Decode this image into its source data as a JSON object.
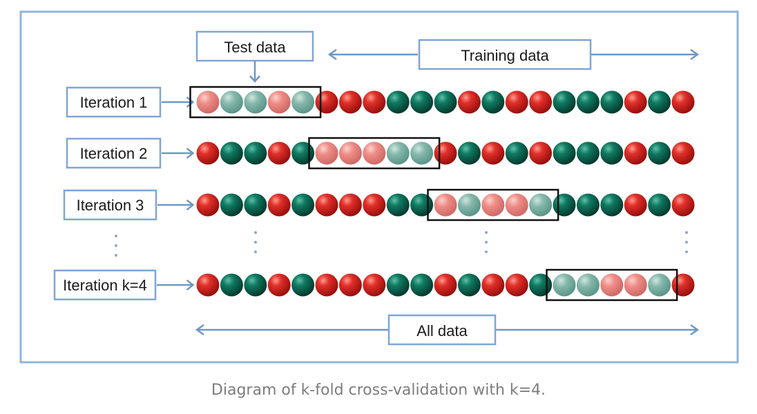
{
  "labels": {
    "test_data": "Test data",
    "training_data": "Training data",
    "all_data": "All data"
  },
  "rows": [
    {
      "label": "Iteration 1",
      "balls": [
        "R",
        "G",
        "G",
        "R",
        "G",
        "R",
        "R",
        "R",
        "G",
        "G",
        "G",
        "R",
        "G",
        "R",
        "R",
        "G",
        "G",
        "G",
        "R",
        "G",
        "R"
      ],
      "test_start": 0
    },
    {
      "label": "Iteration 2",
      "balls": [
        "R",
        "G",
        "G",
        "R",
        "G",
        "R",
        "R",
        "R",
        "G",
        "G",
        "R",
        "G",
        "R",
        "G",
        "R",
        "G",
        "G",
        "G",
        "R",
        "G",
        "R"
      ],
      "test_start": 5
    },
    {
      "label": "Iteration 3",
      "balls": [
        "R",
        "G",
        "G",
        "R",
        "G",
        "R",
        "R",
        "R",
        "G",
        "G",
        "R",
        "G",
        "R",
        "R",
        "G",
        "G",
        "G",
        "G",
        "R",
        "G",
        "R"
      ],
      "test_start": 10
    },
    {
      "label": "Iteration k=4",
      "balls": [
        "R",
        "G",
        "G",
        "R",
        "G",
        "R",
        "R",
        "R",
        "G",
        "G",
        "R",
        "G",
        "R",
        "R",
        "G",
        "G",
        "G",
        "R",
        "R",
        "G",
        "R"
      ],
      "test_start": 15
    }
  ],
  "test_block_size": 5,
  "caption": "Diagram of k-fold cross-validation with k=4.",
  "colors": {
    "red": "#d6201f",
    "green": "#0b6b56",
    "red_faded": "#ec8c88",
    "green_faded": "#7fb3a6",
    "frame": "#8fb4dc",
    "arrow": "#6f97c8"
  }
}
